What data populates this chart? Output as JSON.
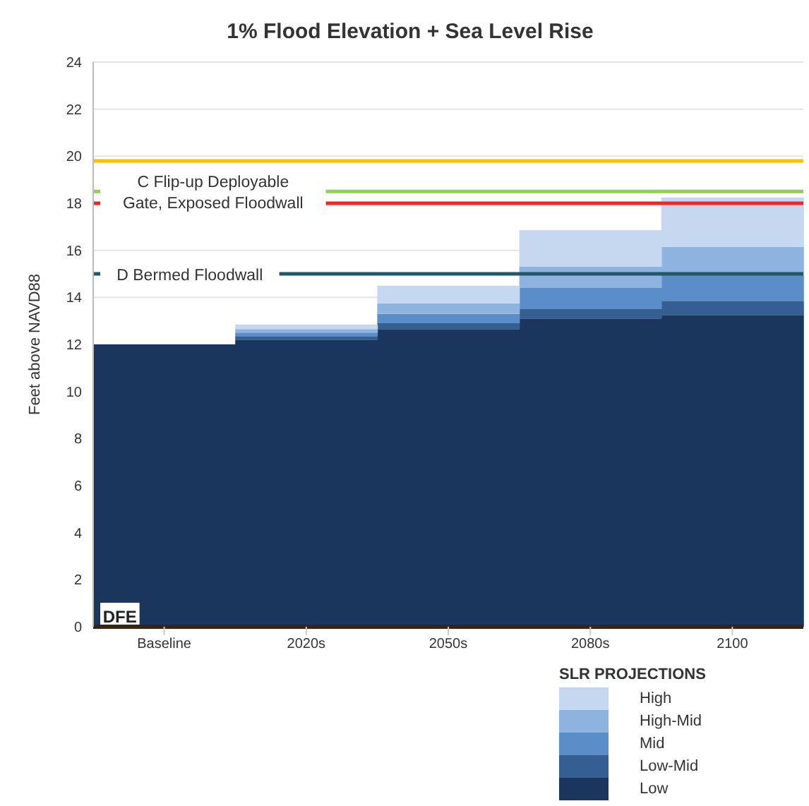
{
  "chart_data": {
    "type": "bar",
    "title": "1% Flood Elevation + Sea Level Rise",
    "ylabel": "Feet above NAVD88",
    "legend_title": "SLR PROJECTIONS",
    "categories": [
      "Baseline",
      "2020s",
      "2050s",
      "2080s",
      "2100"
    ],
    "stacked": true,
    "series": [
      {
        "name": "Low",
        "color": "#1b365d",
        "values": [
          12,
          12.2,
          12.65,
          13.1,
          13.25
        ]
      },
      {
        "name": "Low-Mid",
        "color": "#355f93",
        "values": [
          0,
          0.15,
          0.25,
          0.4,
          0.6
        ]
      },
      {
        "name": "Mid",
        "color": "#5b8dc9",
        "values": [
          0,
          0.15,
          0.4,
          0.9,
          1.1
        ]
      },
      {
        "name": "High-Mid",
        "color": "#8fb3df",
        "values": [
          0,
          0.15,
          0.45,
          0.9,
          1.2
        ]
      },
      {
        "name": "High",
        "color": "#c5d8ef",
        "values": [
          0,
          0.2,
          0.75,
          1.55,
          2.1
        ]
      }
    ],
    "ylim": [
      0,
      24
    ],
    "yticks": [
      0,
      2,
      4,
      6,
      8,
      10,
      12,
      14,
      16,
      18,
      20,
      22,
      24
    ],
    "grid": "y",
    "legend": "bottom right",
    "ref_lines": [
      {
        "axis": "y",
        "value": 19.8,
        "label": null,
        "color": "#ffc000"
      },
      {
        "axis": "y",
        "value": 18.5,
        "label": "C Flip-up Deployable Gate, Exposed Floodwall",
        "color": "#92d050"
      },
      {
        "axis": "y",
        "value": 18,
        "label": null,
        "color": "#ff2020"
      },
      {
        "axis": "y",
        "value": 15,
        "label": "D Bermed Floodwall",
        "color": "#215868"
      }
    ],
    "annotations": [
      "DFE"
    ]
  }
}
